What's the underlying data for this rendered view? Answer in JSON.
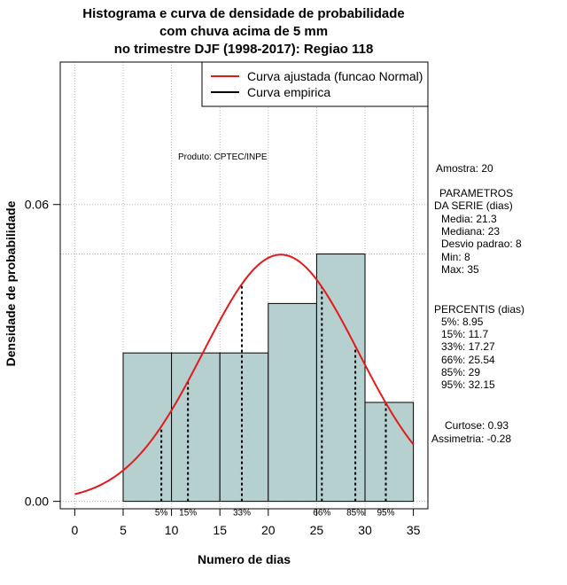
{
  "title": {
    "line1": "Histograma e curva de densidade de probabilidade",
    "line2": "com chuva acima de 5 mm",
    "line3": "no trimestre DJF (1998-2017): Regiao 118"
  },
  "axes": {
    "xlabel": "Numero de dias",
    "ylabel": "Densidade de probabilidade"
  },
  "legend": {
    "fitted": "Curva ajustada (funcao Normal)",
    "empirical": "Curva empirica"
  },
  "product_label": "Produto: CPTEC/INPE",
  "stats": {
    "sample": "Amostra: 20",
    "params_title_1": "PARAMETROS",
    "params_title_2": "DA SERIE (dias)",
    "mean": "Media: 21.3",
    "median": "Mediana: 23",
    "sd": "Desvio padrao: 8",
    "min": "Min: 8",
    "max": "Max: 35",
    "percentis_title": "PERCENTIS (dias)",
    "p5": "5%: 8.95",
    "p15": "15%: 11.7",
    "p33": "33%: 17.27",
    "p66": "66%: 25.54",
    "p85": "85%: 29",
    "p95": "95%: 32.15",
    "kurtosis": "Curtose: 0.93",
    "skewness": "Assimetria: -0.28"
  },
  "chart_data": {
    "type": "bar",
    "title": "Histograma e curva de densidade de probabilidade com chuva acima de 5 mm no trimestre DJF (1998-2017): Regiao 118",
    "xlabel": "Numero de dias",
    "ylabel": "Densidade de probabilidade",
    "xlim": [
      -1.5,
      36.5
    ],
    "ylim": [
      -0.0015,
      0.0888
    ],
    "x_ticks": [
      0,
      5,
      10,
      15,
      20,
      25,
      30,
      35
    ],
    "y_ticks": [
      0.0,
      0.06
    ],
    "y_tick_labels": [
      "0.00",
      "0.06"
    ],
    "bins": [
      {
        "start": 5,
        "end": 10,
        "density": 0.03
      },
      {
        "start": 10,
        "end": 15,
        "density": 0.03
      },
      {
        "start": 15,
        "end": 20,
        "density": 0.03
      },
      {
        "start": 20,
        "end": 25,
        "density": 0.04
      },
      {
        "start": 25,
        "end": 30,
        "density": 0.05
      },
      {
        "start": 30,
        "end": 35,
        "density": 0.02
      }
    ],
    "normal_fit": {
      "mean": 21.3,
      "sd": 8,
      "x_range": [
        0,
        35
      ]
    },
    "percentiles": [
      {
        "label": "5%",
        "value": 8.95
      },
      {
        "label": "15%",
        "value": 11.7
      },
      {
        "label": "33%",
        "value": 17.27
      },
      {
        "label": "66%",
        "value": 25.54
      },
      {
        "label": "85%",
        "value": 29
      },
      {
        "label": "95%",
        "value": 32.15
      }
    ],
    "grid_x": [
      0,
      5,
      10,
      15,
      20,
      25,
      30,
      35
    ],
    "grid_y": [
      0.0,
      0.05,
      0.06
    ],
    "colors": {
      "bar_fill": "#b6cfcf",
      "fit_curve": "#e31a1c",
      "empirical": "#000000",
      "grid": "#b3b3b3"
    }
  }
}
